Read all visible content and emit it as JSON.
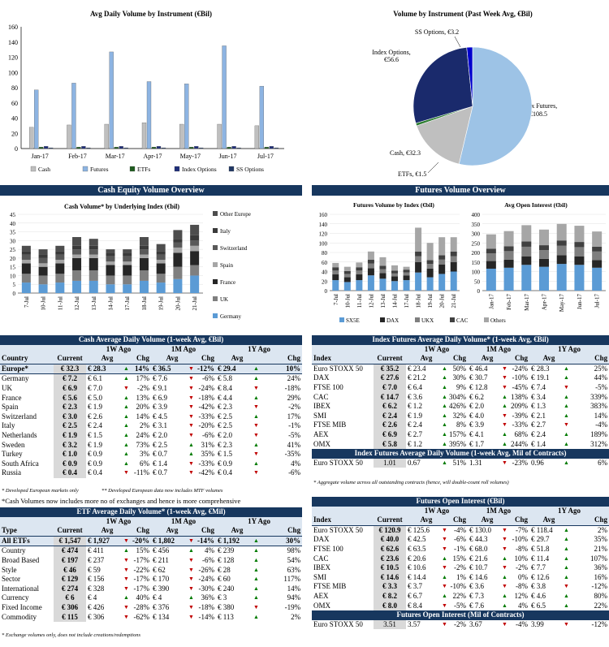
{
  "chart1": {
    "title": "Avg Daily Volume by Instrument (€Bil)",
    "yticks": [
      "0",
      "20",
      "40",
      "60",
      "80",
      "100",
      "120",
      "140",
      "160"
    ],
    "categories": [
      "Jan-17",
      "Feb-17",
      "Mar-17",
      "Apr-17",
      "May-17",
      "Jun-17",
      "Jul-17"
    ],
    "legend": [
      "Cash",
      "Futures",
      "ETFs",
      "Index Options",
      "SS Options"
    ]
  },
  "chart2": {
    "title": "Volume by Instrument (Past Week Avg, €Bil)",
    "labels": {
      "ss": "SS Options, €3.2",
      "io1": "Index Options,",
      "io2": "€56.6",
      "if1": "Index Futures,",
      "if2": "€108.5",
      "cash": "Cash, €32.3",
      "etf": "ETFs, €1.5"
    }
  },
  "cash_overview": {
    "bar": "Cash Equity Volume Overview",
    "title": "Cash Volume* by Underlying Index (€bil)",
    "yticks": [
      "0",
      "5",
      "10",
      "15",
      "20",
      "25",
      "30",
      "35",
      "40",
      "45"
    ],
    "dates": [
      "7-Jul",
      "10-Jul",
      "11-Jul",
      "12-Jul",
      "13-Jul",
      "14-Jul",
      "17-Jul",
      "18-Jul",
      "19-Jul",
      "20-Jul",
      "21-Jul"
    ],
    "legend": [
      "Other Europe",
      "Italy",
      "Switzerland",
      "Spain",
      "France",
      "UK",
      "Germany"
    ]
  },
  "fut_overview": {
    "bar": "Futures Volume Overview",
    "title1": "Futures Volume by Index (€bil)",
    "title2": "Avg Open Interest (€bil)",
    "yticks1": [
      "0",
      "20",
      "40",
      "60",
      "80",
      "100",
      "120",
      "140",
      "160"
    ],
    "yticks2": [
      "0",
      "50",
      "100",
      "150",
      "200",
      "250",
      "300",
      "350",
      "400"
    ],
    "dates": [
      "7-Jul",
      "10-Jul",
      "11-Jul",
      "12-Jul",
      "13-Jul",
      "14-Jul",
      "17-Jul",
      "18-Jul",
      "19-Jul",
      "20-Jul",
      "21-Jul"
    ],
    "months": [
      "Jan-17",
      "Feb-17",
      "Mar-17",
      "Apr-17",
      "May-17",
      "Jun-17",
      "Jul-17"
    ],
    "legend": [
      "SX5E",
      "DAX",
      "UKX",
      "CAC",
      "Others"
    ]
  },
  "chart_data": [
    {
      "type": "bar",
      "title": "Avg Daily Volume by Instrument (€Bil)",
      "categories": [
        "Jan-17",
        "Feb-17",
        "Mar-17",
        "Apr-17",
        "May-17",
        "Jun-17",
        "Jul-17"
      ],
      "ylim": [
        0,
        160
      ],
      "series": [
        {
          "name": "Cash",
          "values": [
            28,
            31,
            32,
            34,
            32,
            32,
            30
          ]
        },
        {
          "name": "Futures",
          "values": [
            77,
            86,
            127,
            88,
            85,
            135,
            82
          ]
        },
        {
          "name": "ETFs",
          "values": [
            2,
            2,
            2,
            2,
            2,
            2,
            2
          ]
        },
        {
          "name": "Index Options",
          "values": [
            3,
            3,
            3,
            3,
            3,
            3,
            3
          ]
        },
        {
          "name": "SS Options",
          "values": [
            1,
            1,
            1,
            1,
            1,
            1,
            1
          ]
        }
      ]
    },
    {
      "type": "pie",
      "title": "Volume by Instrument (Past Week Avg, €Bil)",
      "labels": [
        "Index Futures",
        "Cash",
        "ETFs",
        "Index Options",
        "SS Options"
      ],
      "values": [
        108.5,
        32.3,
        1.5,
        56.6,
        3.2
      ]
    },
    {
      "type": "bar",
      "title": "Cash Volume* by Underlying Index (€bil)",
      "categories": [
        "7-Jul",
        "10-Jul",
        "11-Jul",
        "12-Jul",
        "13-Jul",
        "14-Jul",
        "17-Jul",
        "18-Jul",
        "19-Jul",
        "20-Jul",
        "21-Jul"
      ],
      "ylim": [
        0,
        45
      ],
      "series": [
        {
          "name": "Germany",
          "values": [
            6,
            5,
            6,
            7,
            7,
            5,
            5,
            7,
            6,
            8,
            10
          ]
        },
        {
          "name": "UK",
          "values": [
            5,
            5,
            5,
            6,
            6,
            5,
            5,
            6,
            5,
            7,
            6
          ]
        },
        {
          "name": "France",
          "values": [
            6,
            5,
            6,
            7,
            7,
            6,
            6,
            7,
            6,
            8,
            8
          ]
        },
        {
          "name": "Spain",
          "values": [
            2,
            2,
            2,
            2,
            2,
            2,
            2,
            2,
            2,
            3,
            3
          ]
        },
        {
          "name": "Switzerland",
          "values": [
            3,
            3,
            3,
            3,
            3,
            3,
            3,
            3,
            3,
            3,
            3
          ]
        },
        {
          "name": "Italy",
          "values": [
            2,
            2,
            2,
            2,
            2,
            2,
            2,
            2,
            2,
            2,
            3
          ]
        },
        {
          "name": "Other Europe",
          "values": [
            3,
            3,
            3,
            5,
            4,
            2,
            2,
            5,
            4,
            5,
            6
          ]
        }
      ]
    },
    {
      "type": "bar",
      "title": "Futures Volume by Index (€bil)",
      "categories": [
        "7-Jul",
        "10-Jul",
        "11-Jul",
        "12-Jul",
        "13-Jul",
        "14-Jul",
        "17-Jul",
        "18-Jul",
        "19-Jul",
        "20-Jul",
        "21-Jul"
      ],
      "ylim": [
        0,
        160
      ],
      "series": [
        {
          "name": "SX5E",
          "values": [
            22,
            18,
            22,
            32,
            25,
            20,
            22,
            38,
            28,
            35,
            40
          ]
        },
        {
          "name": "DAX",
          "values": [
            12,
            10,
            12,
            15,
            12,
            10,
            10,
            22,
            18,
            20,
            20
          ]
        },
        {
          "name": "UKX",
          "values": [
            8,
            7,
            8,
            10,
            8,
            6,
            6,
            12,
            10,
            10,
            12
          ]
        },
        {
          "name": "CAC",
          "values": [
            7,
            6,
            7,
            8,
            7,
            6,
            6,
            10,
            8,
            9,
            10
          ]
        },
        {
          "name": "Others",
          "values": [
            9,
            9,
            10,
            17,
            18,
            11,
            6,
            50,
            36,
            38,
            30
          ]
        }
      ]
    },
    {
      "type": "bar",
      "title": "Avg Open Interest (€bil)",
      "categories": [
        "Jan-17",
        "Feb-17",
        "Mar-17",
        "Apr-17",
        "May-17",
        "Jun-17",
        "Jul-17"
      ],
      "ylim": [
        0,
        400
      ],
      "series": [
        {
          "name": "SX5E",
          "values": [
            115,
            120,
            135,
            125,
            140,
            135,
            120
          ]
        },
        {
          "name": "DAX",
          "values": [
            40,
            42,
            45,
            42,
            45,
            45,
            40
          ]
        },
        {
          "name": "UKX",
          "values": [
            40,
            45,
            50,
            45,
            50,
            48,
            45
          ]
        },
        {
          "name": "CAC",
          "values": [
            25,
            25,
            28,
            26,
            28,
            27,
            25
          ]
        },
        {
          "name": "Others",
          "values": [
            75,
            80,
            85,
            82,
            87,
            85,
            80
          ]
        }
      ]
    }
  ],
  "cash_table": {
    "title": "Cash Average Daily Volume (1-week Avg, €Bil)",
    "groups": [
      "1W Ago",
      "1M Ago",
      "1Y Ago"
    ],
    "headers": [
      "Country",
      "Current",
      "Avg",
      "Chg",
      "Avg",
      "Chg",
      "Avg",
      "Chg"
    ],
    "rows": [
      [
        "Europe*",
        "€ 32.3",
        "€ 28.3",
        "14%",
        "€ 36.5",
        "-12%",
        "€ 29.4",
        "10%"
      ],
      [
        "Germany",
        "€ 7.2",
        "€ 6.1",
        "17%",
        "€ 7.6",
        "-6%",
        "€ 5.8",
        "24%"
      ],
      [
        "UK",
        "€ 6.9",
        "€ 7.0",
        "-2%",
        "€ 9.1",
        "-24%",
        "€ 8.4",
        "-18%"
      ],
      [
        "France",
        "€ 5.6",
        "€ 5.0",
        "13%",
        "€ 6.9",
        "-18%",
        "€ 4.4",
        "29%"
      ],
      [
        "Spain",
        "€ 2.3",
        "€ 1.9",
        "20%",
        "€ 3.9",
        "-42%",
        "€ 2.3",
        "-2%"
      ],
      [
        "Switzerland",
        "€ 3.0",
        "€ 2.6",
        "14%",
        "€ 4.5",
        "-33%",
        "€ 2.5",
        "17%"
      ],
      [
        "Italy",
        "€ 2.5",
        "€ 2.4",
        "2%",
        "€ 3.1",
        "-20%",
        "€ 2.5",
        "-1%"
      ],
      [
        "Netherlands",
        "€ 1.9",
        "€ 1.5",
        "24%",
        "€ 2.0",
        "-6%",
        "€ 2.0",
        "-5%"
      ],
      [
        "Sweden",
        "€ 3.2",
        "€ 1.9",
        "73%",
        "€ 2.5",
        "31%",
        "€ 2.3",
        "41%"
      ],
      [
        "Turkey",
        "€ 1.0",
        "€ 0.9",
        "3%",
        "€ 0.7",
        "35%",
        "€ 1.5",
        "-35%"
      ],
      [
        "South Africa",
        "€ 0.9",
        "€ 0.9",
        "6%",
        "€ 1.4",
        "-33%",
        "€ 0.9",
        "4%"
      ],
      [
        "Russia",
        "€ 0.4",
        "€ 0.4",
        "-11%",
        "€ 0.7",
        "-42%",
        "€ 0.4",
        "-6%"
      ]
    ],
    "foot1": "* Developed European markets only",
    "foot2": "** Developed European data now includes MTF volumes",
    "note": "*Cash Volumes now includes more no of exchanges and hence is more comprehensive"
  },
  "etf_table": {
    "title": "ETF Average Daily Volume* (1-week Avg, €Mil)",
    "groups": [
      "1W Ago",
      "1M Ago",
      "1Y Ago"
    ],
    "headers": [
      "Type",
      "Current",
      "Avg",
      "Chg",
      "Avg",
      "Chg",
      "Avg",
      "Chg"
    ],
    "rows": [
      [
        "All ETFs",
        "€ 1,547",
        "€ 1,927",
        "-20%",
        "€ 1,802",
        "-14%",
        "€ 1,192",
        "30%"
      ],
      [
        "Country",
        "€ 474",
        "€ 411",
        "15%",
        "€ 456",
        "4%",
        "€ 239",
        "98%"
      ],
      [
        "Broad Based",
        "€ 197",
        "€ 237",
        "-17%",
        "€ 211",
        "-6%",
        "€ 128",
        "54%"
      ],
      [
        "Style",
        "€ 46",
        "€ 59",
        "-22%",
        "€ 62",
        "-26%",
        "€ 28",
        "63%"
      ],
      [
        "Sector",
        "€ 129",
        "€ 156",
        "-17%",
        "€ 170",
        "-24%",
        "€ 60",
        "117%"
      ],
      [
        "International",
        "€ 274",
        "€ 328",
        "-17%",
        "€ 390",
        "-30%",
        "€ 240",
        "14%"
      ],
      [
        "Currency",
        "€ 6",
        "€ 4",
        "40%",
        "€ 4",
        "36%",
        "€ 3",
        "94%"
      ],
      [
        "Fixed Income",
        "€ 306",
        "€ 426",
        "-28%",
        "€ 376",
        "-18%",
        "€ 380",
        "-19%"
      ],
      [
        "Commodity",
        "€ 115",
        "€ 306",
        "-62%",
        "€ 134",
        "-14%",
        "€ 113",
        "2%"
      ]
    ],
    "foot": "* Exchange volumes only, does not include creations/redemptions"
  },
  "futvol_table": {
    "title": "Index Futures Average Daily Volume* (1-week Avg, €Bil)",
    "groups": [
      "1W Ago",
      "1M Ago",
      "1Y Ago"
    ],
    "headers": [
      "Index",
      "Current",
      "Avg",
      "Chg",
      "Avg",
      "Chg",
      "Avg",
      "Chg"
    ],
    "rows": [
      [
        "Euro STOXX 50",
        "€ 35.2",
        "€ 23.4",
        "50%",
        "€ 46.4",
        "-24%",
        "€ 28.3",
        "25%"
      ],
      [
        "DAX",
        "€ 27.6",
        "€ 21.2",
        "30%",
        "€ 30.7",
        "-10%",
        "€ 19.1",
        "44%"
      ],
      [
        "FTSE 100",
        "€ 7.0",
        "€ 6.4",
        "9%",
        "€ 12.8",
        "-45%",
        "€ 7.4",
        "-5%"
      ],
      [
        "CAC",
        "€ 14.7",
        "€ 3.6",
        "304%",
        "€ 6.2",
        "138%",
        "€ 3.4",
        "339%"
      ],
      [
        "IBEX",
        "€ 6.2",
        "€ 1.2",
        "426%",
        "€ 2.0",
        "209%",
        "€ 1.3",
        "383%"
      ],
      [
        "SMI",
        "€ 2.4",
        "€ 1.9",
        "32%",
        "€ 4.0",
        "-39%",
        "€ 2.1",
        "14%"
      ],
      [
        "FTSE MIB",
        "€ 2.6",
        "€ 2.4",
        "8%",
        "€ 3.9",
        "-33%",
        "€ 2.7",
        "-4%"
      ],
      [
        "AEX",
        "€ 6.9",
        "€ 2.7",
        "157%",
        "€ 4.1",
        "68%",
        "€ 2.4",
        "189%"
      ],
      [
        "OMX",
        "€ 5.8",
        "€ 1.2",
        "395%",
        "€ 1.7",
        "244%",
        "€ 1.4",
        "312%"
      ]
    ],
    "sub_title": "Index Futures Average Daily Volume (1-week Avg, Mil of Contracts)",
    "sub_row": [
      "Euro STOXX 50",
      "1.01",
      "0.67",
      "51%",
      "1.31",
      "-23%",
      "0.96",
      "6%"
    ],
    "foot": "* Aggregate volume across all outstanding contracts (hence, will double-count roll volumes)"
  },
  "oi_table": {
    "title": "Futures Open Interest (€Bil)",
    "groups": [
      "1W Ago",
      "1M Ago",
      "1Y Ago"
    ],
    "headers": [
      "Index",
      "Current",
      "Avg",
      "Chg",
      "Avg",
      "Chg",
      "Avg",
      "Chg"
    ],
    "rows": [
      [
        "Euro STOXX 50",
        "€ 120.9",
        "€ 125.6",
        "-4%",
        "€ 130.0",
        "-7%",
        "€ 118.4",
        "2%"
      ],
      [
        "DAX",
        "€ 40.0",
        "€ 42.5",
        "-6%",
        "€ 44.3",
        "-10%",
        "€ 29.7",
        "35%"
      ],
      [
        "FTSE 100",
        "€ 62.6",
        "€ 63.5",
        "-1%",
        "€ 68.0",
        "-8%",
        "€ 51.8",
        "21%"
      ],
      [
        "CAC",
        "€ 23.6",
        "€ 20.6",
        "15%",
        "€ 21.6",
        "10%",
        "€ 11.4",
        "107%"
      ],
      [
        "IBEX",
        "€ 10.5",
        "€ 10.6",
        "-2%",
        "€ 10.7",
        "-2%",
        "€ 7.7",
        "36%"
      ],
      [
        "SMI",
        "€ 14.6",
        "€ 14.4",
        "1%",
        "€ 14.6",
        "0%",
        "€ 12.6",
        "16%"
      ],
      [
        "FTSE MIB",
        "€ 3.3",
        "€ 3.7",
        "-10%",
        "€ 3.6",
        "-8%",
        "€ 3.8",
        "-12%"
      ],
      [
        "AEX",
        "€ 8.2",
        "€ 6.7",
        "22%",
        "€ 7.3",
        "12%",
        "€ 4.6",
        "80%"
      ],
      [
        "OMX",
        "€ 8.0",
        "€ 8.4",
        "-5%",
        "€ 7.6",
        "4%",
        "€ 6.5",
        "22%"
      ]
    ],
    "sub_title": "Futures Open Interest (Mil of Contracts)",
    "sub_row": [
      "Euro STOXX 50",
      "3.51",
      "3.57",
      "-2%",
      "3.67",
      "-4%",
      "3.99",
      "-12%"
    ]
  }
}
